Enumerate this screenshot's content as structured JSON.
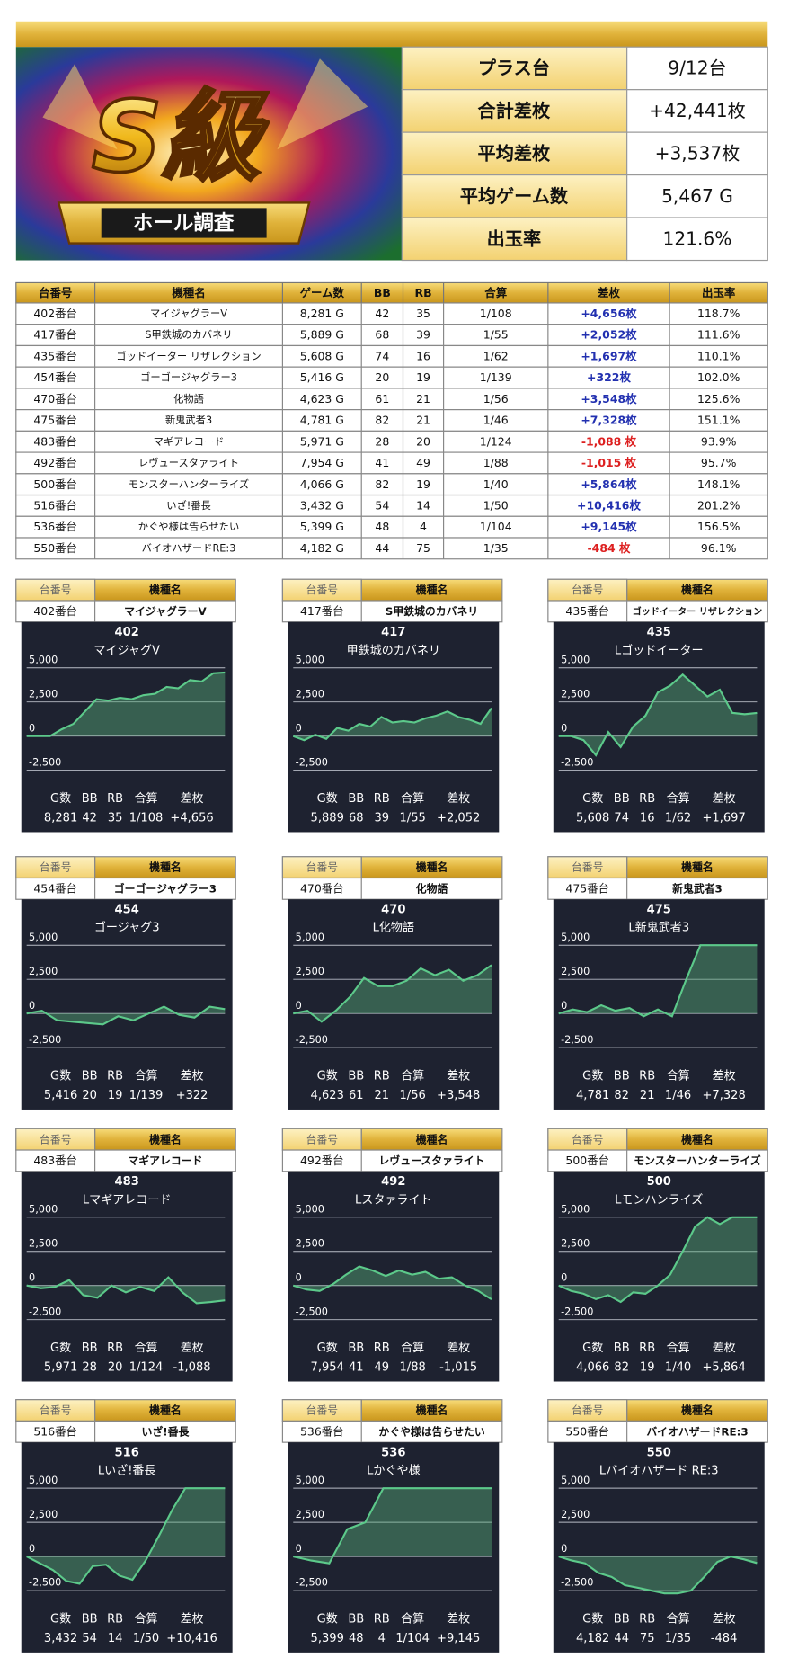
{
  "banner": {
    "title": "S級",
    "subtitle": "ホール調査"
  },
  "summary": {
    "rows": [
      [
        "プラス台",
        "9/12台"
      ],
      [
        "合計差枚",
        "+42,441枚"
      ],
      [
        "平均差枚",
        "+3,537枚"
      ],
      [
        "平均ゲーム数",
        "5,467 G"
      ],
      [
        "出玉率",
        "121.6%"
      ]
    ]
  },
  "table": {
    "header": [
      "台番号",
      "機種名",
      "ゲーム数",
      "BB",
      "RB",
      "合算",
      "差枚",
      "出玉率"
    ],
    "rows": [
      [
        "402番台",
        "マイジャグラーV",
        "8,281 G",
        "42",
        "35",
        "1/108",
        "+4,656枚",
        "118.7%"
      ],
      [
        "417番台",
        "S甲鉄城のカバネリ",
        "5,889 G",
        "68",
        "39",
        "1/55",
        "+2,052枚",
        "111.6%"
      ],
      [
        "435番台",
        "ゴッドイーター リザレクション",
        "5,608 G",
        "74",
        "16",
        "1/62",
        "+1,697枚",
        "110.1%"
      ],
      [
        "454番台",
        "ゴーゴージャグラー3",
        "5,416 G",
        "20",
        "19",
        "1/139",
        "+322枚",
        "102.0%"
      ],
      [
        "470番台",
        "化物語",
        "4,623 G",
        "61",
        "21",
        "1/56",
        "+3,548枚",
        "125.6%"
      ],
      [
        "475番台",
        "新鬼武者3",
        "4,781 G",
        "82",
        "21",
        "1/46",
        "+7,328枚",
        "151.1%"
      ],
      [
        "483番台",
        "マギアレコード",
        "5,971 G",
        "28",
        "20",
        "1/124",
        "-1,088 枚",
        "93.9%"
      ],
      [
        "492番台",
        "レヴュースタァライト",
        "7,954 G",
        "41",
        "49",
        "1/88",
        "-1,015 枚",
        "95.7%"
      ],
      [
        "500番台",
        "モンスターハンターライズ",
        "4,066 G",
        "82",
        "19",
        "1/40",
        "+5,864枚",
        "148.1%"
      ],
      [
        "516番台",
        "いざ!番長",
        "3,432 G",
        "54",
        "14",
        "1/50",
        "+10,416枚",
        "201.2%"
      ],
      [
        "536番台",
        "かぐや様は告らせたい",
        "5,399 G",
        "48",
        "4",
        "1/104",
        "+9,145枚",
        "156.5%"
      ],
      [
        "550番台",
        "バイオハザードRE:3",
        "4,182 G",
        "44",
        "75",
        "1/35",
        "-484 枚",
        "96.1%"
      ]
    ]
  },
  "graphs": {
    "ylim": [
      -3000,
      5600
    ],
    "yticks": [
      {
        "value": 5000,
        "label": "5,000"
      },
      {
        "value": 2500,
        "label": "2,500"
      },
      0,
      {
        "value": -2500,
        "label": "-2,500"
      }
    ],
    "stat_labels": [
      "G数",
      "BB",
      "RB",
      "合算",
      "差枚"
    ],
    "items": [
      {
        "number": "402",
        "title": "マイジャグV",
        "stats": [
          "8,281",
          "42",
          "35",
          "1/108",
          "+4,656"
        ],
        "values": [
          0,
          0,
          0,
          500,
          900,
          1800,
          2700,
          2600,
          2800,
          2700,
          3000,
          3100,
          3600,
          3500,
          4100,
          4000,
          4600,
          4656
        ]
      },
      {
        "number": "417",
        "title": "甲鉄城のカバネリ",
        "stats": [
          "5,889",
          "68",
          "39",
          "1/55",
          "+2,052"
        ],
        "values": [
          0,
          -300,
          100,
          -200,
          600,
          400,
          900,
          700,
          1400,
          1000,
          1100,
          1000,
          1300,
          1500,
          1800,
          1400,
          1200,
          900,
          2052
        ]
      },
      {
        "number": "435",
        "title": "Lゴッドイーター",
        "stats": [
          "5,608",
          "74",
          "16",
          "1/62",
          "+1,697"
        ],
        "values": [
          0,
          0,
          -300,
          -1400,
          300,
          -800,
          700,
          1500,
          3200,
          3700,
          4500,
          3700,
          2900,
          3400,
          1700,
          1600,
          1697
        ]
      },
      {
        "number": "454",
        "title": "ゴージャグ3",
        "stats": [
          "5,416",
          "20",
          "19",
          "1/139",
          "+322"
        ],
        "values": [
          0,
          200,
          -500,
          -600,
          -700,
          -800,
          -200,
          -500,
          0,
          500,
          -100,
          -300,
          500,
          322
        ]
      },
      {
        "number": "470",
        "title": "L化物語",
        "stats": [
          "4,623",
          "61",
          "21",
          "1/56",
          "+3,548"
        ],
        "values": [
          0,
          200,
          -600,
          200,
          1200,
          2600,
          2000,
          2000,
          2400,
          3300,
          2800,
          3200,
          2400,
          2800,
          3548
        ]
      },
      {
        "number": "475",
        "title": "L新鬼武者3",
        "stats": [
          "4,781",
          "82",
          "21",
          "1/46",
          "+7,328"
        ],
        "values": [
          0,
          300,
          100,
          600,
          200,
          400,
          -200,
          300,
          -200,
          2500,
          5000,
          5000,
          5000,
          5000,
          5000
        ]
      },
      {
        "number": "483",
        "title": "Lマギアレコード",
        "stats": [
          "5,971",
          "28",
          "20",
          "1/124",
          "-1,088"
        ],
        "values": [
          0,
          -200,
          -100,
          400,
          -700,
          -900,
          0,
          -500,
          -100,
          -400,
          600,
          -500,
          -1300,
          -1200,
          -1088
        ]
      },
      {
        "number": "492",
        "title": "Lスタァライト",
        "stats": [
          "7,954",
          "41",
          "49",
          "1/88",
          "-1,015"
        ],
        "values": [
          0,
          -300,
          -400,
          100,
          800,
          1400,
          1100,
          700,
          1100,
          800,
          1000,
          500,
          600,
          0,
          -400,
          -1015
        ]
      },
      {
        "number": "500",
        "title": "Lモンハンライズ",
        "stats": [
          "4,066",
          "82",
          "19",
          "1/40",
          "+5,864"
        ],
        "values": [
          0,
          -400,
          -600,
          -1000,
          -700,
          -1200,
          -500,
          -600,
          0,
          800,
          2500,
          4300,
          5000,
          4500,
          5000,
          5000,
          5000
        ]
      },
      {
        "number": "516",
        "title": "Lいざ!番長",
        "stats": [
          "3,432",
          "54",
          "14",
          "1/50",
          "+10,416"
        ],
        "values": [
          0,
          -500,
          -1000,
          -1800,
          -2000,
          -700,
          -600,
          -1400,
          -1700,
          -300,
          1500,
          3400,
          5000,
          5000,
          5000,
          5000
        ]
      },
      {
        "number": "536",
        "title": "Lかぐや様",
        "stats": [
          "5,399",
          "48",
          "4",
          "1/104",
          "+9,145"
        ],
        "values": [
          0,
          -300,
          -500,
          2000,
          2500,
          5000,
          5000,
          5000,
          5000,
          5000,
          5000,
          5000
        ]
      },
      {
        "number": "550",
        "title": "Lバイオハザード RE:3",
        "stats": [
          "4,182",
          "44",
          "75",
          "1/35",
          "-484"
        ],
        "values": [
          0,
          -300,
          -500,
          -1200,
          -1500,
          -2100,
          -2300,
          -2500,
          -2700,
          -2700,
          -2500,
          -1500,
          -400,
          0,
          -200,
          -484
        ]
      }
    ]
  }
}
